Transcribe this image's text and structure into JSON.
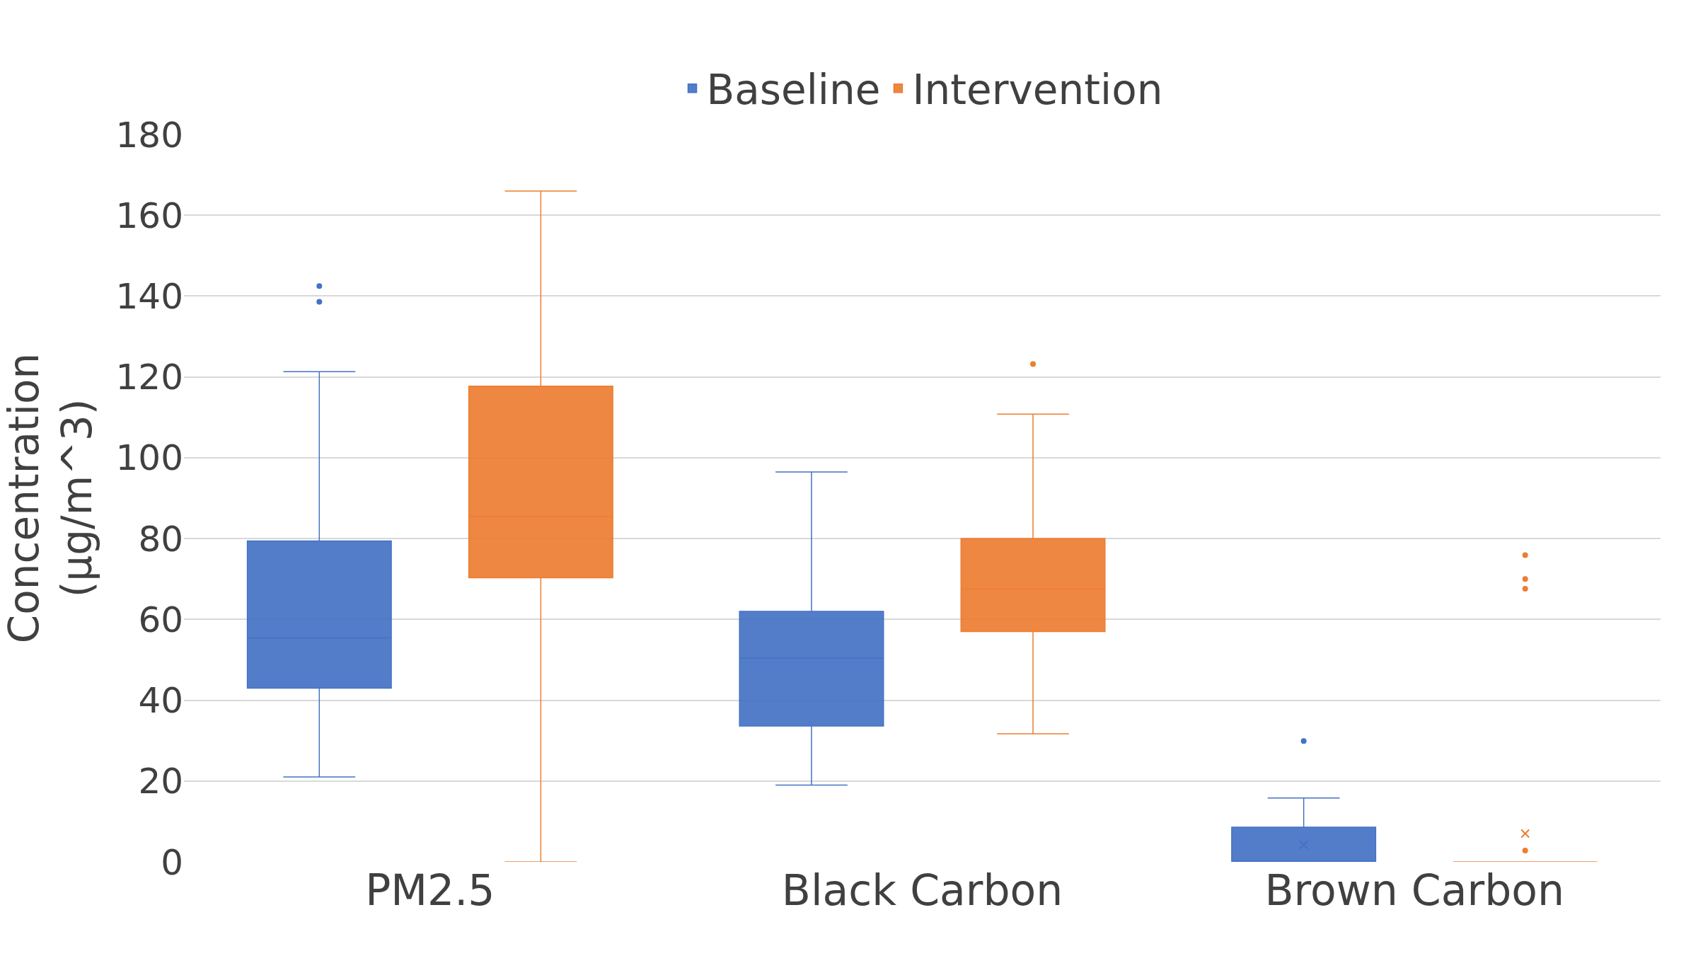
{
  "chart_data": {
    "type": "box",
    "ylabel": "Concentration\n(µg/m^3)",
    "categories": [
      "PM2.5",
      "Black Carbon",
      "Brown Carbon"
    ],
    "series": [
      {
        "name": "Baseline",
        "color": "#4472c4",
        "boxes": [
          {
            "low": 21,
            "q1": 43,
            "median": 55.4,
            "q3": 79.4,
            "high": 121.3,
            "outliers": [
              142.5,
              138.6
            ]
          },
          {
            "low": 19,
            "q1": 33.6,
            "median": 50.4,
            "q3": 62,
            "high": 96.5
          },
          {
            "low": 0,
            "q1": 0,
            "median": 0,
            "q3": 8.6,
            "high": 15.8,
            "mean": 4.2,
            "outliers": [
              29.9
            ]
          }
        ]
      },
      {
        "name": "Intervention",
        "color": "#ed7d31",
        "boxes": [
          {
            "low": 0,
            "q1": 70.3,
            "median": 85.4,
            "q3": 117.7,
            "high": 166
          },
          {
            "low": 31.7,
            "q1": 57,
            "median": 67.5,
            "q3": 80,
            "high": 110.8,
            "outliers": [
              123.2
            ]
          },
          {
            "low": 0,
            "q1": 0,
            "median": 0,
            "q3": 0,
            "high": 0,
            "mean": 7,
            "outliers": [
              75.9,
              70,
              67.6,
              2.8
            ]
          }
        ]
      }
    ],
    "ylim": [
      0,
      180
    ],
    "yticks": [
      0,
      20,
      40,
      60,
      80,
      100,
      120,
      140,
      160,
      180
    ],
    "grid": "y",
    "legend": "top"
  }
}
